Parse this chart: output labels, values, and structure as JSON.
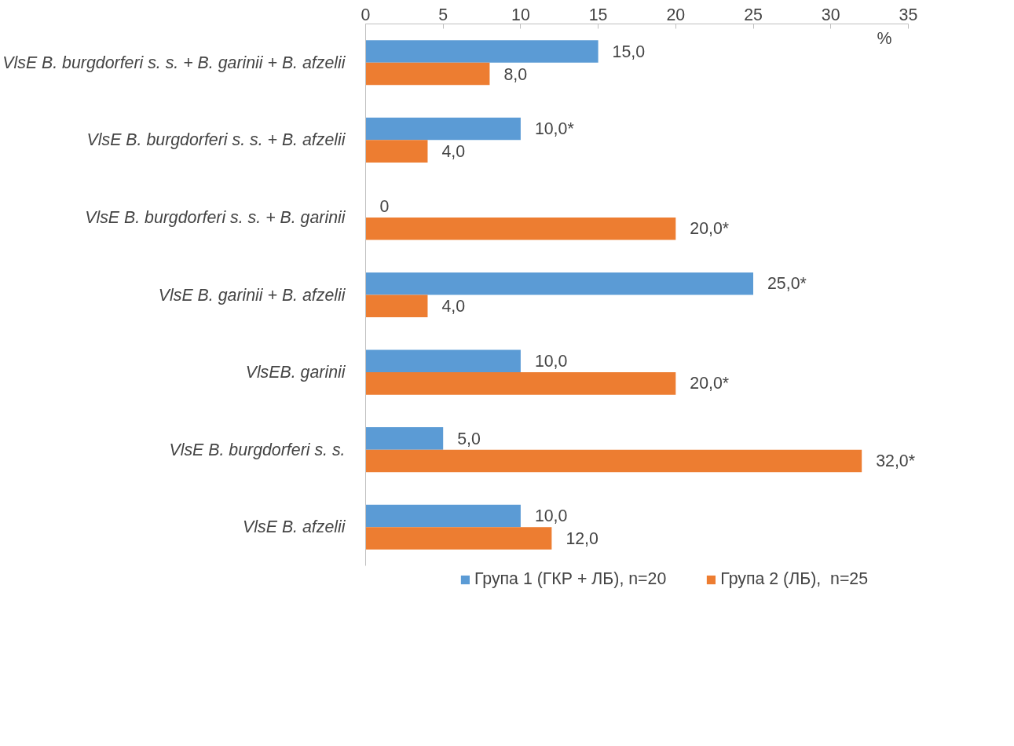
{
  "chart_data": {
    "type": "bar",
    "orientation": "horizontal",
    "xlabel": "%",
    "categories": [
      "VlsE B. burgdorferi s. s. + B. garinii + B. afzelii",
      "VlsE B. burgdorferi s. s. + B. afzelii",
      "VlsE B. burgdorferi s. s. + B. garinii",
      "VlsE B. garinii + B. afzelii",
      "VlsEB. garinii",
      "VlsE B. burgdorferi s. s.",
      "VlsE B. afzelii"
    ],
    "series": [
      {
        "name": "Група 1 (ГКР + ЛБ), n=20",
        "color": "#5b9bd5",
        "values": [
          15,
          10,
          0,
          25,
          10,
          5,
          10
        ],
        "value_labels": [
          "15,0",
          "10,0*",
          "0",
          "25,0*",
          "10,0",
          "5,0",
          "10,0"
        ]
      },
      {
        "name": "Група 2 (ЛБ),  n=25",
        "color": "#ed7d31",
        "values": [
          8,
          4,
          20,
          4,
          20,
          32,
          12
        ],
        "value_labels": [
          "8,0",
          "4,0",
          "20,0*",
          "4,0",
          "20,0*",
          "32,0*",
          "12,0"
        ]
      }
    ],
    "xlim": [
      0,
      35
    ],
    "xticks": [
      0,
      5,
      10,
      15,
      20,
      25,
      30,
      35
    ],
    "grid": false,
    "legend": "bottom"
  }
}
